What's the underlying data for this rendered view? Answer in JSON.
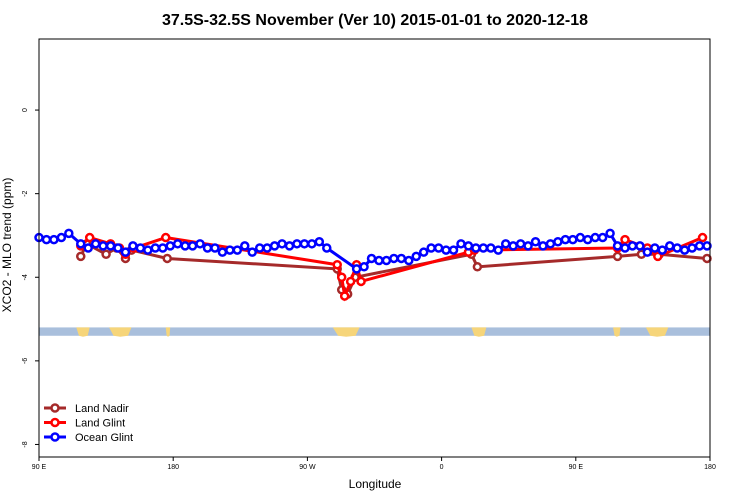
{
  "chart_data": {
    "type": "scatter",
    "title": "37.5S-32.5S November (Ver 10)   2015-01-01 to 2020-12-18",
    "xlabel": "Longitude",
    "ylabel": "XCO2 - MLO trend (ppm)",
    "xlim": [
      0,
      450
    ],
    "ylim": [
      -8.3,
      1.7
    ],
    "x_ticks": [
      {
        "value": 0,
        "label": "90 E"
      },
      {
        "value": 90,
        "label": "180"
      },
      {
        "value": 180,
        "label": "90 W"
      },
      {
        "value": 270,
        "label": "0"
      },
      {
        "value": 360,
        "label": "90 E"
      },
      {
        "value": 450,
        "label": "180"
      }
    ],
    "y_ticks": [
      {
        "value": 0,
        "label": "0"
      },
      {
        "value": -2,
        "label": "-2"
      },
      {
        "value": -4,
        "label": "-4"
      },
      {
        "value": -6,
        "label": "-6"
      },
      {
        "value": -8,
        "label": "-8"
      }
    ],
    "map_band": {
      "y_top": -5.2,
      "y_bottom": -5.4,
      "ocean_color": "#a9bfdc",
      "land_color": "#f6d57a",
      "land_ranges": [
        [
          25,
          34
        ],
        [
          47,
          62
        ],
        [
          85,
          88
        ],
        [
          197,
          215
        ],
        [
          290,
          300
        ],
        [
          385,
          390
        ],
        [
          407,
          422
        ]
      ]
    },
    "legend": {
      "position": "bottom-left"
    },
    "series": [
      {
        "name": "Land Nadir",
        "color": "#a52a2a",
        "points": [
          [
            28,
            -3.5
          ],
          [
            32,
            -3.2
          ],
          [
            45,
            -3.45
          ],
          [
            52,
            -3.3
          ],
          [
            58,
            -3.55
          ],
          [
            62,
            -3.35
          ],
          [
            86,
            -3.55
          ],
          [
            200,
            -3.8
          ],
          [
            203,
            -4.3
          ],
          [
            207,
            -4.4
          ],
          [
            212,
            -4.0
          ],
          [
            290,
            -3.45
          ],
          [
            294,
            -3.75
          ],
          [
            388,
            -3.5
          ],
          [
            404,
            -3.45
          ],
          [
            416,
            -3.45
          ],
          [
            448,
            -3.55
          ]
        ]
      },
      {
        "name": "Land Glint",
        "color": "#ff0000",
        "points": [
          [
            28,
            -3.25
          ],
          [
            34,
            -3.05
          ],
          [
            48,
            -3.2
          ],
          [
            54,
            -3.3
          ],
          [
            58,
            -3.45
          ],
          [
            64,
            -3.3
          ],
          [
            85,
            -3.05
          ],
          [
            200,
            -3.7
          ],
          [
            203,
            -4.0
          ],
          [
            205,
            -4.45
          ],
          [
            209,
            -4.1
          ],
          [
            213,
            -3.7
          ],
          [
            216,
            -4.1
          ],
          [
            288,
            -3.4
          ],
          [
            292,
            -3.35
          ],
          [
            388,
            -3.3
          ],
          [
            393,
            -3.1
          ],
          [
            408,
            -3.3
          ],
          [
            415,
            -3.5
          ],
          [
            445,
            -3.05
          ]
        ]
      },
      {
        "name": "Ocean Glint",
        "color": "#0000ff",
        "points": [
          [
            0,
            -3.05
          ],
          [
            5,
            -3.1
          ],
          [
            10,
            -3.1
          ],
          [
            15,
            -3.05
          ],
          [
            20,
            -2.95
          ],
          [
            28,
            -3.2
          ],
          [
            33,
            -3.3
          ],
          [
            38,
            -3.2
          ],
          [
            43,
            -3.25
          ],
          [
            48,
            -3.25
          ],
          [
            53,
            -3.3
          ],
          [
            58,
            -3.4
          ],
          [
            63,
            -3.25
          ],
          [
            68,
            -3.3
          ],
          [
            73,
            -3.35
          ],
          [
            78,
            -3.3
          ],
          [
            83,
            -3.3
          ],
          [
            88,
            -3.25
          ],
          [
            93,
            -3.2
          ],
          [
            98,
            -3.25
          ],
          [
            103,
            -3.25
          ],
          [
            108,
            -3.2
          ],
          [
            113,
            -3.3
          ],
          [
            118,
            -3.3
          ],
          [
            123,
            -3.4
          ],
          [
            128,
            -3.35
          ],
          [
            133,
            -3.35
          ],
          [
            138,
            -3.25
          ],
          [
            143,
            -3.4
          ],
          [
            148,
            -3.3
          ],
          [
            153,
            -3.3
          ],
          [
            158,
            -3.25
          ],
          [
            163,
            -3.2
          ],
          [
            168,
            -3.25
          ],
          [
            173,
            -3.2
          ],
          [
            178,
            -3.2
          ],
          [
            183,
            -3.2
          ],
          [
            188,
            -3.15
          ],
          [
            193,
            -3.3
          ],
          [
            213,
            -3.8
          ],
          [
            218,
            -3.75
          ],
          [
            223,
            -3.55
          ],
          [
            228,
            -3.6
          ],
          [
            233,
            -3.6
          ],
          [
            238,
            -3.55
          ],
          [
            243,
            -3.55
          ],
          [
            248,
            -3.6
          ],
          [
            253,
            -3.5
          ],
          [
            258,
            -3.4
          ],
          [
            263,
            -3.3
          ],
          [
            268,
            -3.3
          ],
          [
            273,
            -3.35
          ],
          [
            278,
            -3.35
          ],
          [
            283,
            -3.2
          ],
          [
            288,
            -3.25
          ],
          [
            293,
            -3.3
          ],
          [
            298,
            -3.3
          ],
          [
            303,
            -3.3
          ],
          [
            308,
            -3.35
          ],
          [
            313,
            -3.2
          ],
          [
            318,
            -3.25
          ],
          [
            323,
            -3.2
          ],
          [
            328,
            -3.25
          ],
          [
            333,
            -3.15
          ],
          [
            338,
            -3.25
          ],
          [
            343,
            -3.2
          ],
          [
            348,
            -3.15
          ],
          [
            353,
            -3.1
          ],
          [
            358,
            -3.1
          ],
          [
            363,
            -3.05
          ],
          [
            368,
            -3.1
          ],
          [
            373,
            -3.05
          ],
          [
            378,
            -3.05
          ],
          [
            383,
            -2.95
          ],
          [
            388,
            -3.25
          ],
          [
            393,
            -3.3
          ],
          [
            398,
            -3.25
          ],
          [
            403,
            -3.25
          ],
          [
            408,
            -3.4
          ],
          [
            413,
            -3.3
          ],
          [
            418,
            -3.35
          ],
          [
            423,
            -3.25
          ],
          [
            428,
            -3.3
          ],
          [
            433,
            -3.35
          ],
          [
            438,
            -3.3
          ],
          [
            443,
            -3.25
          ],
          [
            448,
            -3.25
          ]
        ]
      }
    ]
  }
}
